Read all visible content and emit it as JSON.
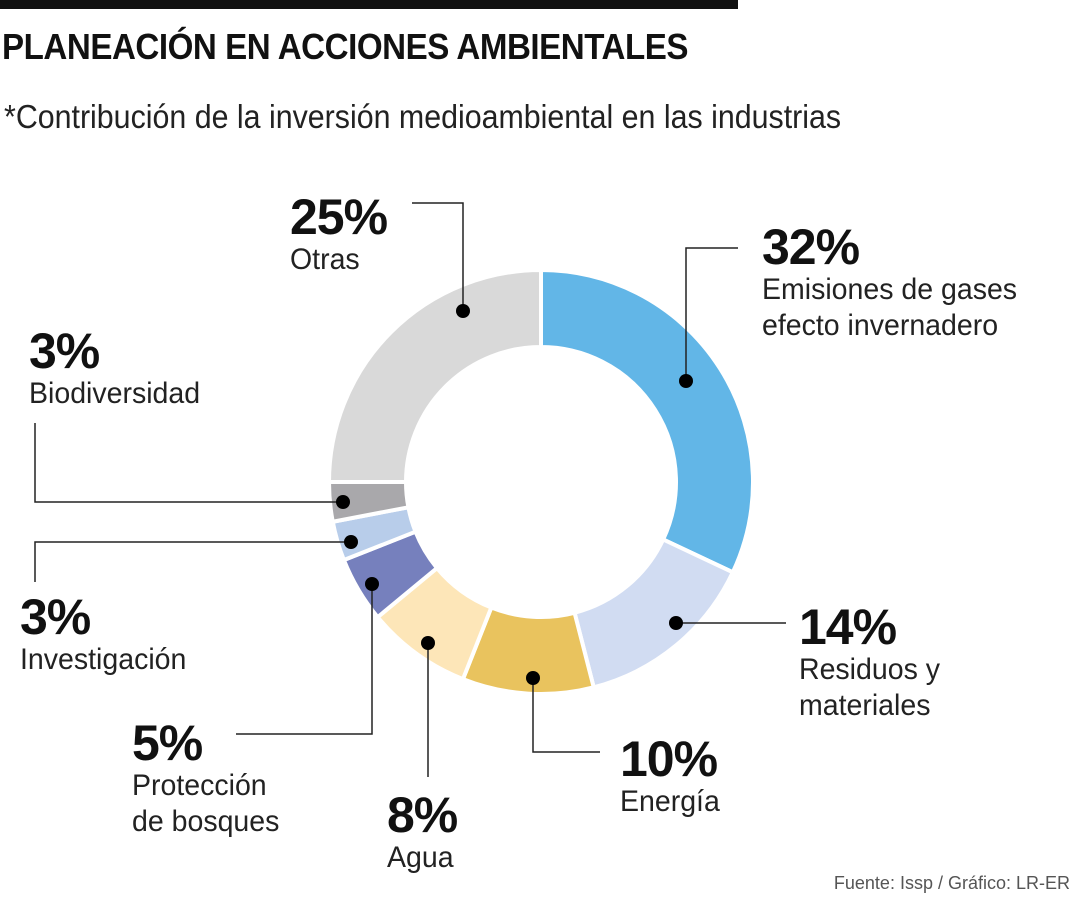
{
  "header": {
    "title": "PLANEACIÓN EN ACCIONES AMBIENTALES",
    "subtitle": "*Contribución de la inversión medioambiental en las industrias"
  },
  "footer": {
    "source": "Fuente: Issp / Gráfico: LR-ER"
  },
  "chart_data": {
    "type": "pie",
    "variant": "donut",
    "title": "PLANEACIÓN EN ACCIONES AMBIENTALES",
    "subtitle": "*Contribución de la inversión medioambiental en las industrias",
    "unit": "%",
    "start": "top",
    "direction": "clockwise",
    "slices": [
      {
        "label": "Emisiones de gases efecto invernadero",
        "label_lines": [
          "Emisiones de gases",
          "efecto invernadero"
        ],
        "value": 32,
        "pct_text": "32%",
        "color": "#62b6e7"
      },
      {
        "label": "Residuos y materiales",
        "label_lines": [
          "Residuos y",
          "materiales"
        ],
        "value": 14,
        "pct_text": "14%",
        "color": "#d1dcf2"
      },
      {
        "label": "Energía",
        "label_lines": [
          "Energía"
        ],
        "value": 10,
        "pct_text": "10%",
        "color": "#e9c35e"
      },
      {
        "label": "Agua",
        "label_lines": [
          "Agua"
        ],
        "value": 8,
        "pct_text": "8%",
        "color": "#fde6b8"
      },
      {
        "label": "Protección de bosques",
        "label_lines": [
          "Protección",
          "de bosques"
        ],
        "value": 5,
        "pct_text": "5%",
        "color": "#7680bd"
      },
      {
        "label": "Investigación",
        "label_lines": [
          "Investigación"
        ],
        "value": 3,
        "pct_text": "3%",
        "color": "#b8cdea"
      },
      {
        "label": "Biodiversidad",
        "label_lines": [
          "Biodiversidad"
        ],
        "value": 3,
        "pct_text": "3%",
        "color": "#a9a8ab"
      },
      {
        "label": "Otras",
        "label_lines": [
          "Otras"
        ],
        "value": 25,
        "pct_text": "25%",
        "color": "#d9d9d9"
      }
    ]
  }
}
